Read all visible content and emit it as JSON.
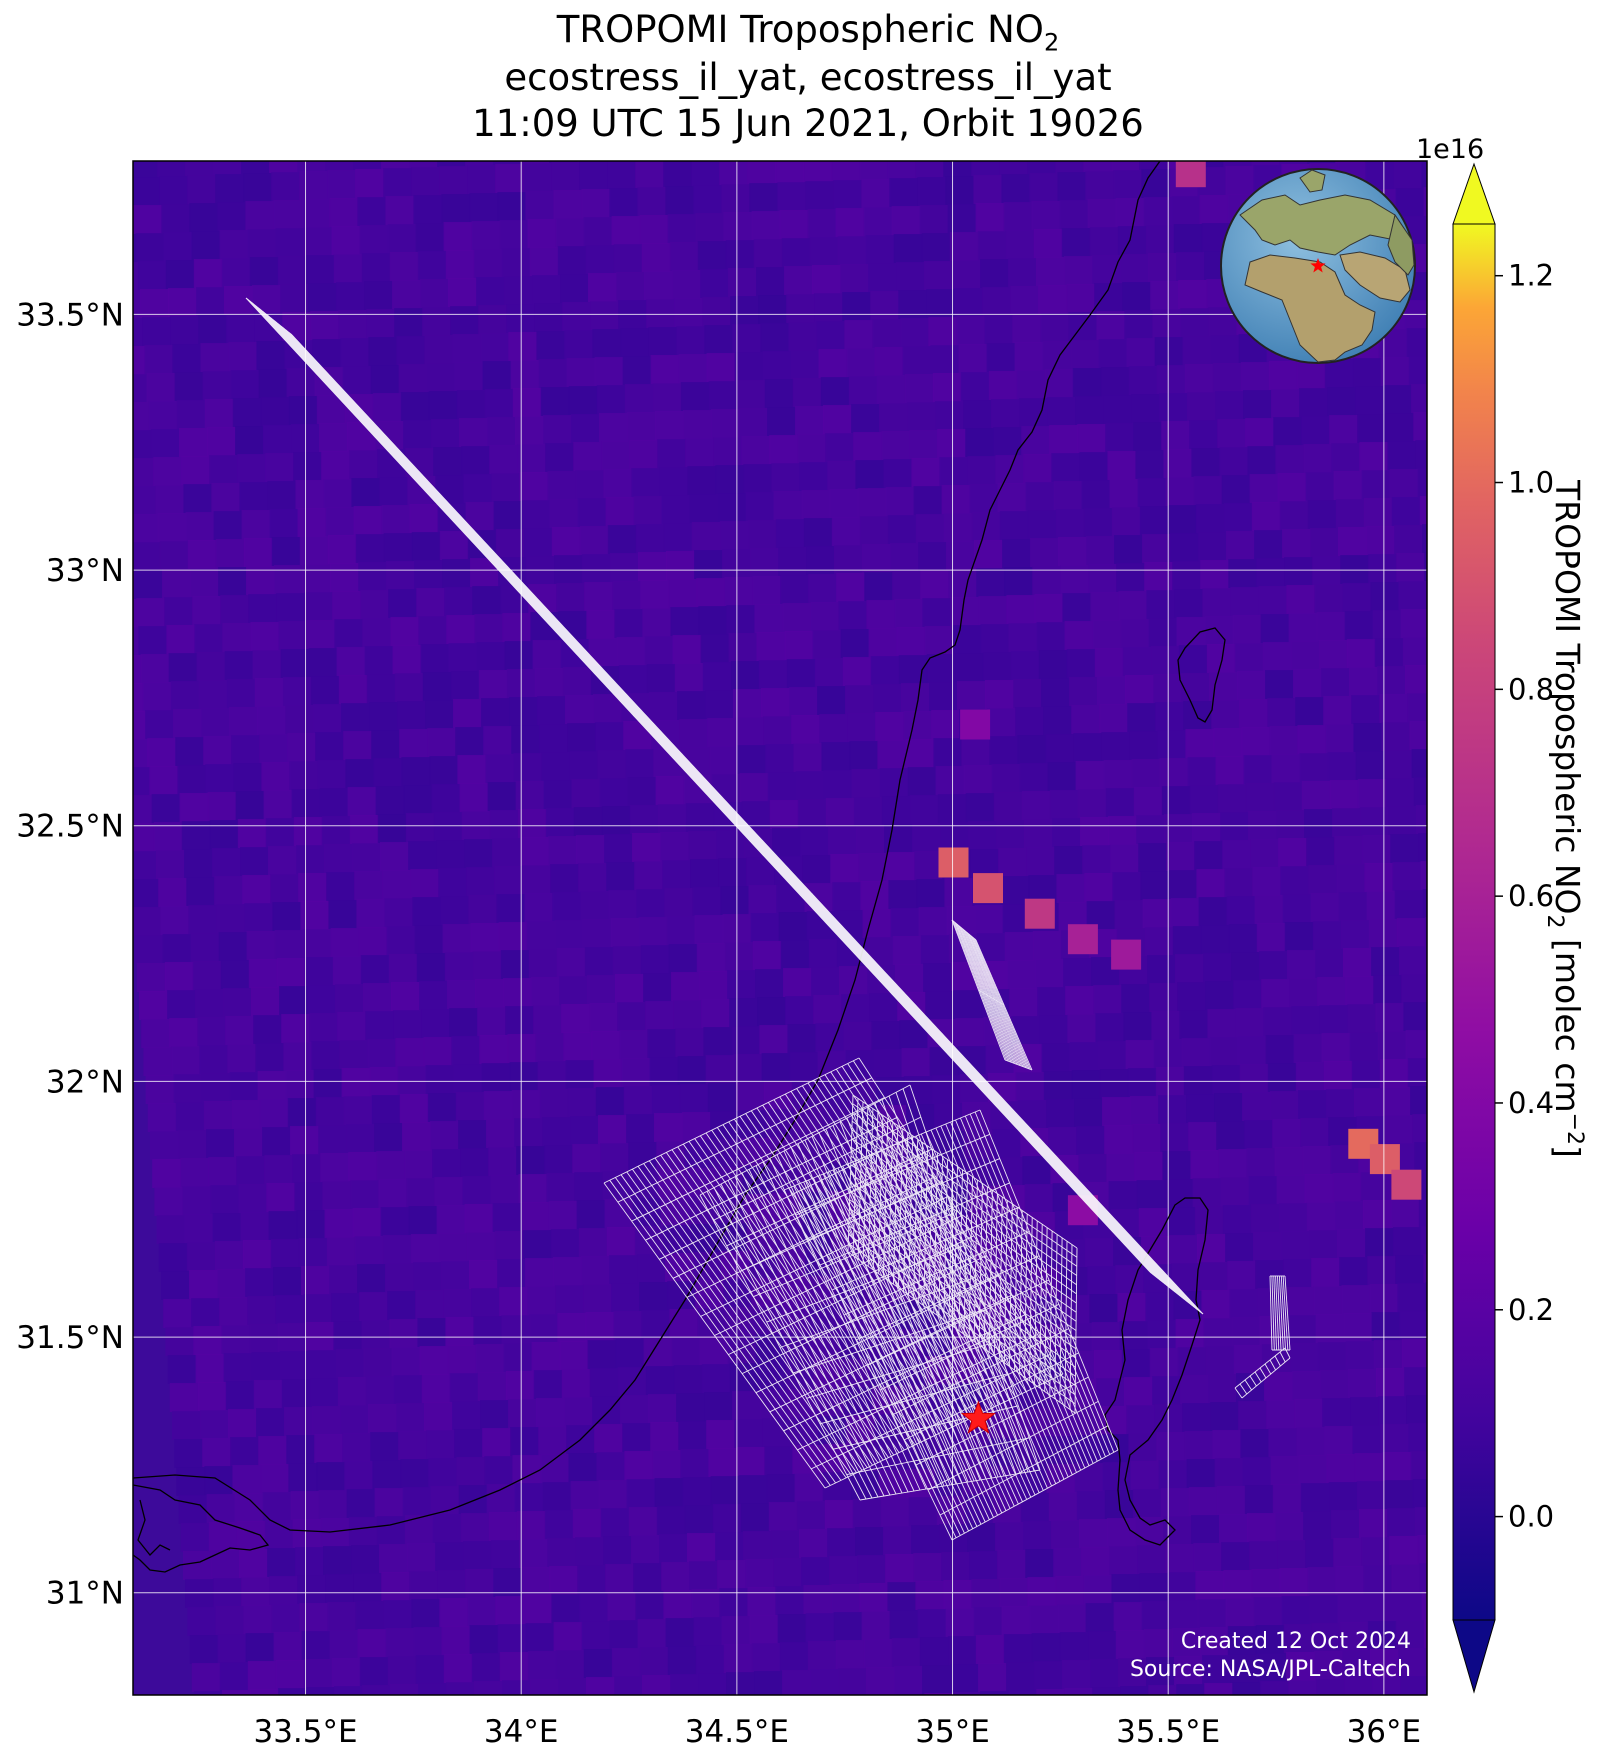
{
  "title": {
    "line1_prefix": "TROPOMI Tropospheric NO",
    "line1_sub": "2",
    "line2": "ecostress_il_yat, ecostress_il_yat",
    "line3": "11:09 UTC 15 Jun 2021, Orbit 19026"
  },
  "map": {
    "lon_range": [
      33.1,
      36.1
    ],
    "lat_range": [
      30.8,
      33.8
    ],
    "lon_ticks": [
      {
        "value": 33.5,
        "label": "33.5°E"
      },
      {
        "value": 34.0,
        "label": "34°E"
      },
      {
        "value": 34.5,
        "label": "34.5°E"
      },
      {
        "value": 35.0,
        "label": "35°E"
      },
      {
        "value": 35.5,
        "label": "35.5°E"
      },
      {
        "value": 36.0,
        "label": "36°E"
      }
    ],
    "lat_ticks": [
      {
        "value": 33.5,
        "label": "33.5°N"
      },
      {
        "value": 33.0,
        "label": "33°N"
      },
      {
        "value": 32.5,
        "label": "32.5°N"
      },
      {
        "value": 32.0,
        "label": "32°N"
      },
      {
        "value": 31.5,
        "label": "31.5°N"
      },
      {
        "value": 31.0,
        "label": "31°N"
      }
    ],
    "grid": true,
    "target_marker": {
      "lon": 35.06,
      "lat": 31.34,
      "symbol": "star",
      "color": "#ff0000"
    },
    "no2_hotspots": [
      {
        "lon": 35.0,
        "lat": 32.43,
        "value": 0.95
      },
      {
        "lon": 35.08,
        "lat": 32.38,
        "value": 0.9
      },
      {
        "lon": 35.2,
        "lat": 32.33,
        "value": 0.75
      },
      {
        "lon": 35.3,
        "lat": 32.28,
        "value": 0.6
      },
      {
        "lon": 35.4,
        "lat": 32.25,
        "value": 0.55
      },
      {
        "lon": 35.95,
        "lat": 31.88,
        "value": 1.0
      },
      {
        "lon": 36.0,
        "lat": 31.85,
        "value": 0.95
      },
      {
        "lon": 36.05,
        "lat": 31.8,
        "value": 0.85
      },
      {
        "lon": 35.05,
        "lat": 32.7,
        "value": 0.4
      },
      {
        "lon": 35.55,
        "lat": 33.78,
        "value": 0.7
      },
      {
        "lon": 35.3,
        "lat": 31.75,
        "value": 0.45
      }
    ],
    "inset_globe": {
      "marker_color": "#ff0000"
    },
    "credit_line1": "Created 12 Oct 2024",
    "credit_line2": "Source: NASA/JPL-Caltech"
  },
  "colorbar": {
    "colormap": "plasma",
    "range": [
      -0.1,
      1.25
    ],
    "exponent_label": "1e16",
    "ticks": [
      {
        "value": 0.0,
        "label": "0.0"
      },
      {
        "value": 0.2,
        "label": "0.2"
      },
      {
        "value": 0.4,
        "label": "0.4"
      },
      {
        "value": 0.6,
        "label": "0.6"
      },
      {
        "value": 0.8,
        "label": "0.8"
      },
      {
        "value": 1.0,
        "label": "1.0"
      },
      {
        "value": 1.2,
        "label": "1.2"
      }
    ],
    "label_prefix": "TROPOMI Tropospheric NO",
    "label_sub": "2",
    "label_unit": " [molec cm",
    "label_sup": "−2",
    "label_close": "]"
  }
}
